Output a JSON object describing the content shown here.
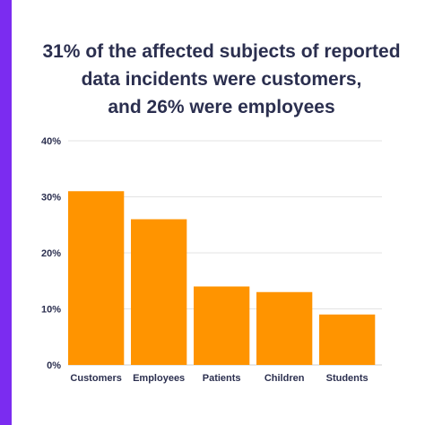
{
  "accent_color": "#7b2cf0",
  "bar_color": "#ff9400",
  "chart_data": {
    "type": "bar",
    "title_lines": [
      "31% of the affected subjects of reported",
      "data incidents were customers,",
      "and 26% were employees"
    ],
    "categories": [
      "Customers",
      "Employees",
      "Patients",
      "Children",
      "Students"
    ],
    "values": [
      31,
      26,
      14,
      13,
      9
    ],
    "ylim": [
      0,
      40
    ],
    "yticks": [
      0,
      10,
      20,
      30,
      40
    ],
    "ytick_labels": [
      "0%",
      "10%",
      "20%",
      "30%",
      "40%"
    ],
    "xlabel": "",
    "ylabel": "",
    "grid": true,
    "legend": "none"
  }
}
